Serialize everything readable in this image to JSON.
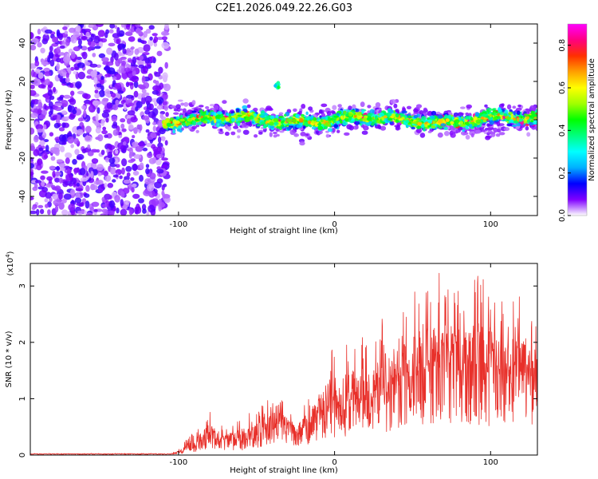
{
  "figure_title": "C2E1.2026.049.22.26.G03",
  "chart_data": [
    {
      "type": "heatmap",
      "title": "C2E1.2026.049.22.26.G03",
      "xlabel": "Height of straight line (km)",
      "ylabel": "Frequency (Hz)",
      "xlim": [
        -195,
        130
      ],
      "ylim": [
        -50,
        50
      ],
      "xticks": [
        -100,
        0,
        100
      ],
      "yticks": [
        -40,
        -20,
        0,
        20,
        40
      ],
      "colorbar": {
        "label": "Normalized spectral amplitude",
        "range": [
          0,
          0.9
        ],
        "ticks": [
          0.0,
          0.2,
          0.4,
          0.6,
          0.8
        ],
        "colormap": [
          "#ffffff",
          "#8000ff",
          "#0000ff",
          "#00b0ff",
          "#00ffff",
          "#00ff80",
          "#00ff00",
          "#a0ff00",
          "#ffff00",
          "#ffa000",
          "#ff3000",
          "#ff0080",
          "#ff00ff"
        ]
      },
      "features": {
        "noise_region_km": [
          -195,
          -107
        ],
        "signal_band_start_km": -110,
        "signal_center_hz": 0,
        "signal_halfwidth_hz": 6,
        "isolated_blob": {
          "x_km": -37,
          "y_hz": 18
        }
      }
    },
    {
      "type": "line",
      "xlabel": "Height of straight line (km)",
      "ylabel": "SNR (10 * v/v)",
      "scale_label": "(x10",
      "scale_exp": "4",
      "scale_suffix": ")",
      "xlim": [
        -195,
        130
      ],
      "ylim": [
        0,
        3.4
      ],
      "xticks": [
        -100,
        0,
        100
      ],
      "yticks": [
        0,
        1,
        2,
        3
      ],
      "series": [
        {
          "name": "SNR",
          "color": "#e8302a",
          "envelope": {
            "x": [
              -195,
              -105,
              -100,
              -90,
              -85,
              -80,
              -75,
              -70,
              -60,
              -50,
              -45,
              -40,
              -35,
              -30,
              -25,
              -20,
              -15,
              -10,
              -5,
              0,
              10,
              20,
              30,
              40,
              50,
              60,
              70,
              80,
              90,
              100,
              110,
              120,
              130
            ],
            "mean": [
              0.02,
              0.02,
              0.05,
              0.15,
              0.25,
              0.35,
              0.3,
              0.25,
              0.25,
              0.3,
              0.45,
              0.5,
              0.55,
              0.5,
              0.4,
              0.45,
              0.6,
              0.75,
              0.8,
              0.9,
              0.95,
              1.0,
              1.05,
              1.35,
              1.45,
              1.5,
              1.55,
              1.5,
              1.5,
              1.45,
              1.4,
              1.4,
              1.4
            ],
            "peak": [
              0.03,
              0.03,
              0.1,
              0.45,
              0.6,
              0.78,
              0.6,
              0.45,
              0.7,
              0.8,
              1.05,
              0.98,
              1.0,
              0.85,
              0.7,
              0.85,
              1.1,
              1.4,
              1.9,
              1.9,
              2.0,
              2.2,
              2.4,
              2.9,
              3.25,
              3.4,
              3.2,
              3.0,
              3.2,
              3.1,
              2.7,
              2.9,
              2.5
            ]
          }
        }
      ]
    }
  ],
  "colors": {
    "accent": "#e8302a"
  }
}
